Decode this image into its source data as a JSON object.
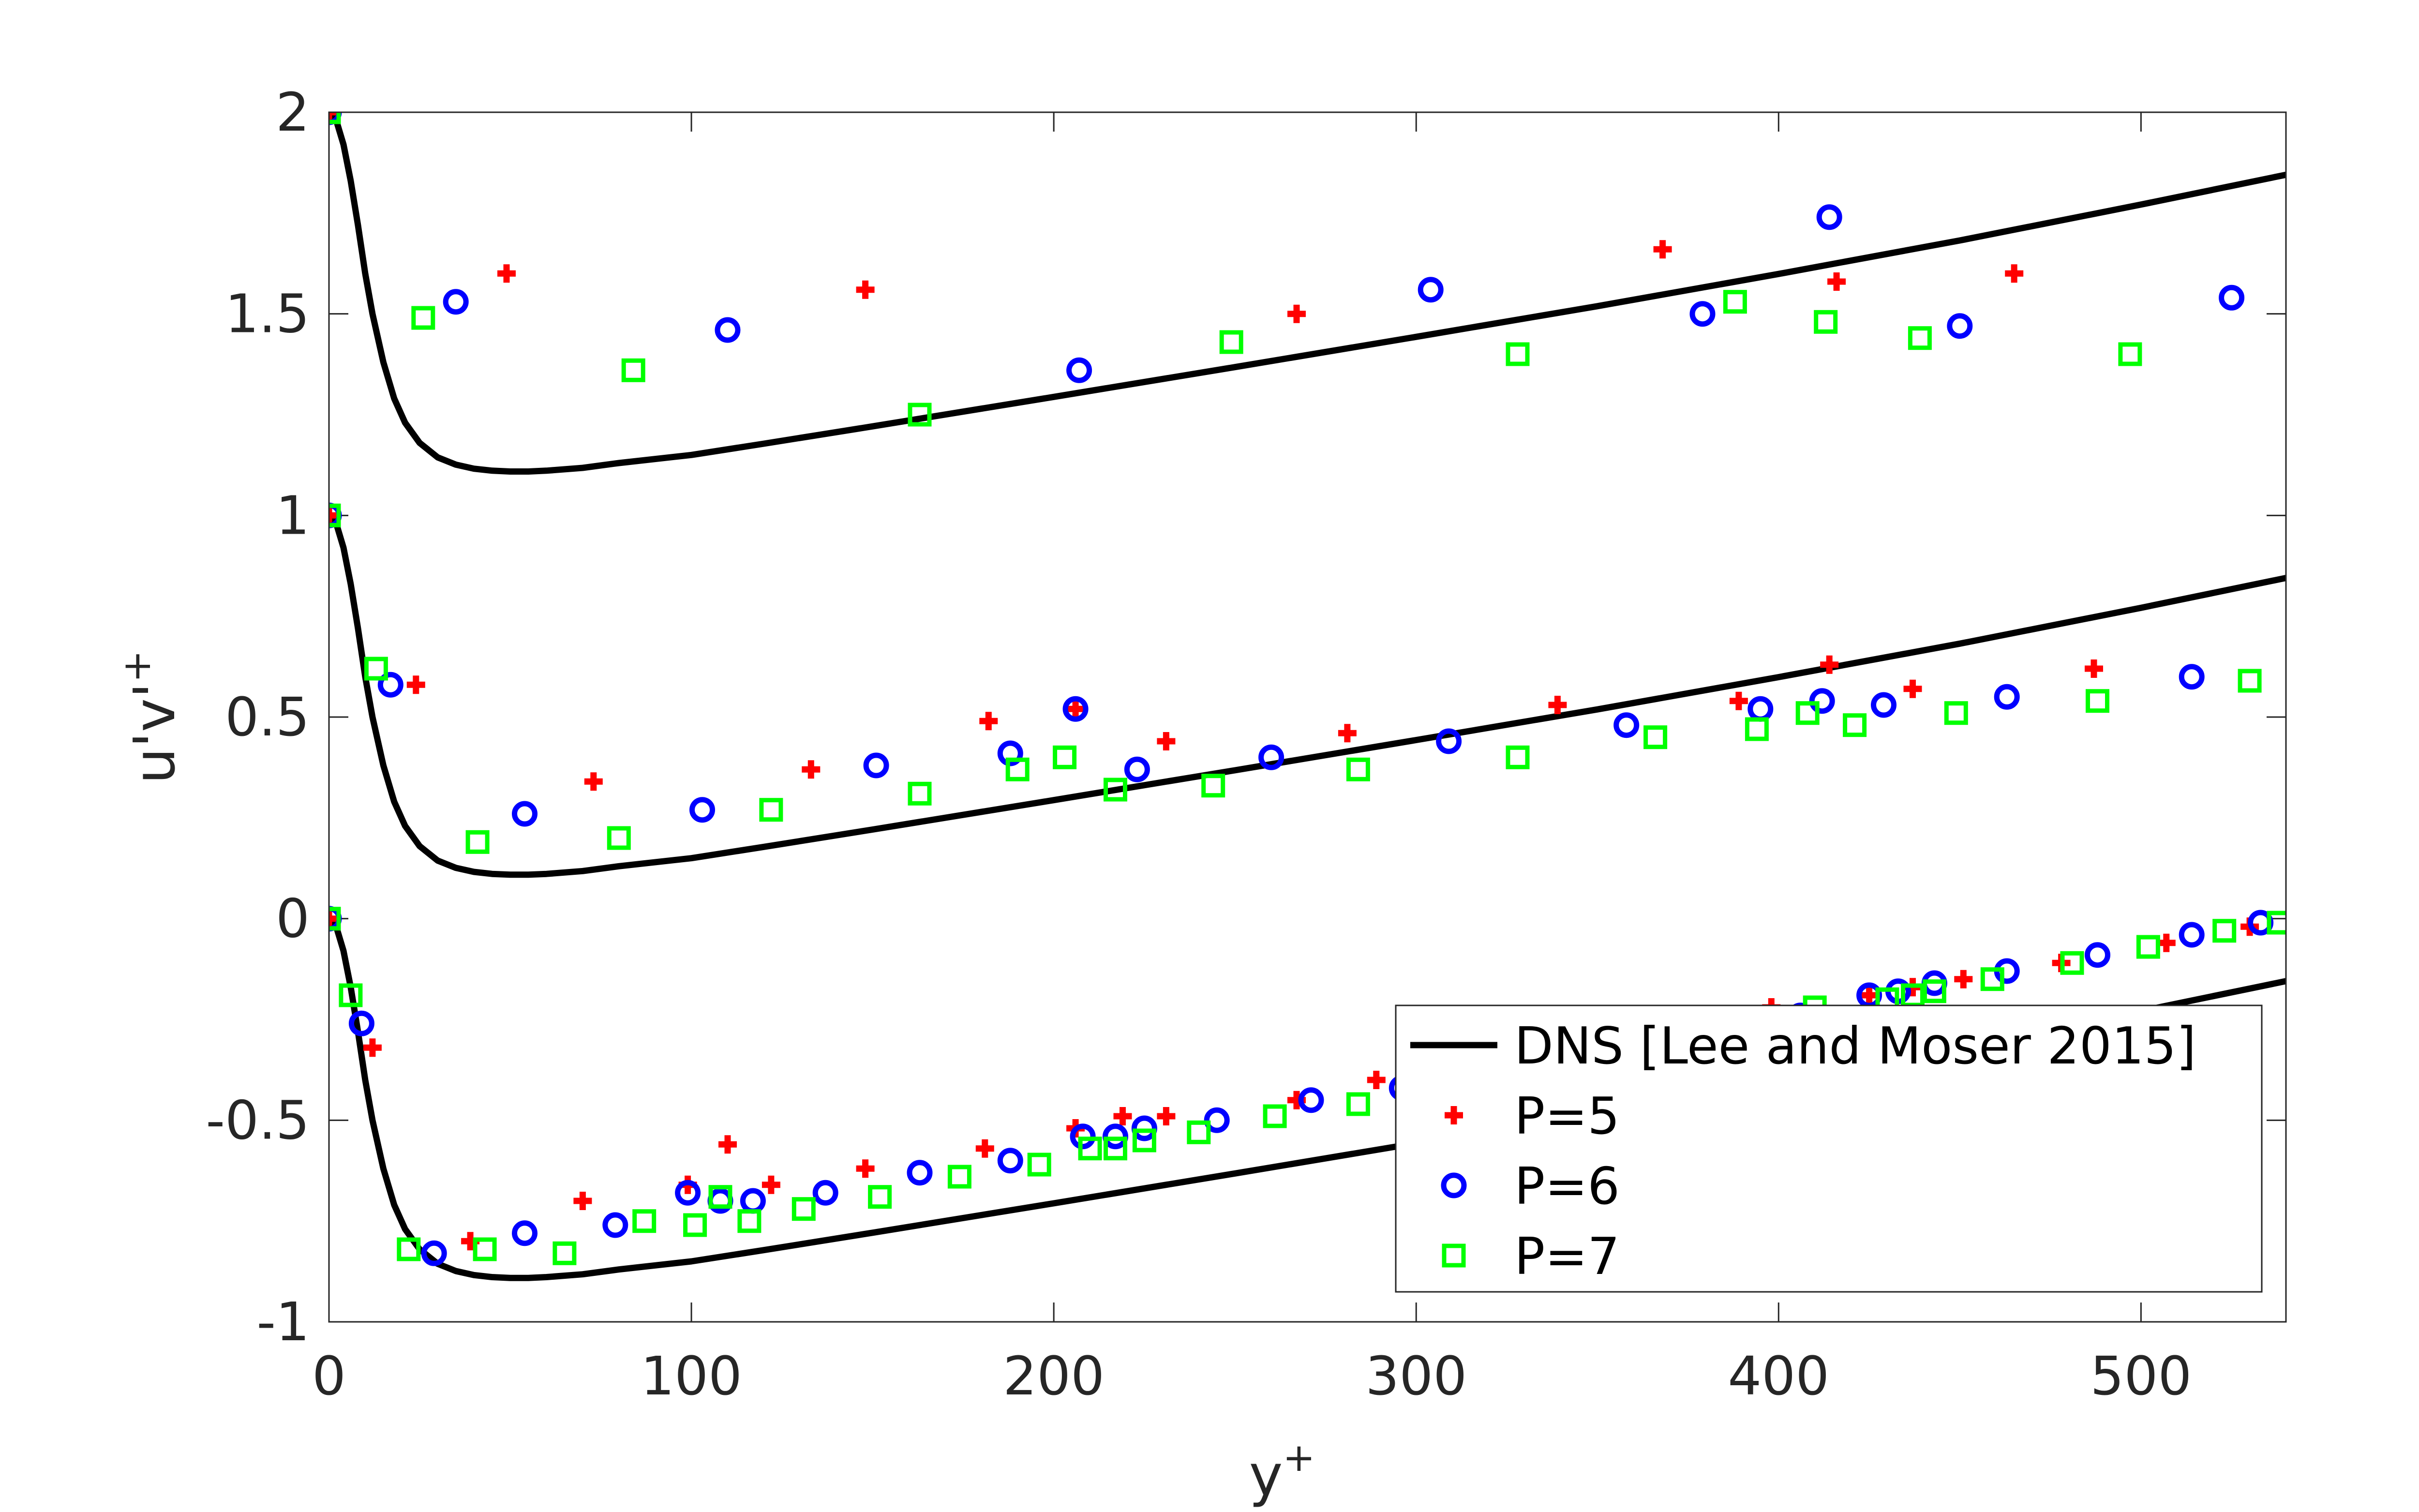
{
  "chart_data": {
    "type": "scatter",
    "title": "",
    "xlabel": "y",
    "xlabel_sup": "+",
    "ylabel": "u'v'",
    "ylabel_sup": "+",
    "xlim": [
      0,
      540
    ],
    "ylim": [
      -1,
      2
    ],
    "xticks": [
      0,
      100,
      200,
      300,
      400,
      500
    ],
    "yticks": [
      -1,
      -0.5,
      0,
      0.5,
      1,
      1.5,
      2
    ],
    "xtick_labels": [
      "0",
      "100",
      "200",
      "300",
      "400",
      "500"
    ],
    "ytick_labels": [
      "-1",
      "-0.5",
      "0",
      "0.5",
      "1",
      "1.5",
      "2"
    ],
    "grid": false,
    "legend_position": "bottom-right",
    "colors": {
      "dns": "#000000",
      "p5": "#ff0000",
      "p6": "#0000ff",
      "p7": "#00ff00",
      "axes": "#262626"
    },
    "series": [
      {
        "name": "DNS [Lee and Moser 2015]",
        "marker": "line",
        "offsets": [
          0,
          1,
          2
        ],
        "x": [
          0,
          2,
          4,
          6,
          8,
          10,
          12,
          15,
          18,
          21,
          25,
          30,
          35,
          40,
          45,
          50,
          55,
          60,
          70,
          80,
          100,
          120,
          150,
          200,
          250,
          300,
          350,
          400,
          450,
          500,
          540
        ],
        "y": [
          0,
          -0.02,
          -0.08,
          -0.17,
          -0.28,
          -0.4,
          -0.5,
          -0.62,
          -0.71,
          -0.77,
          -0.82,
          -0.856,
          -0.874,
          -0.884,
          -0.889,
          -0.891,
          -0.891,
          -0.889,
          -0.882,
          -0.87,
          -0.85,
          -0.822,
          -0.779,
          -0.706,
          -0.632,
          -0.557,
          -0.481,
          -0.401,
          -0.318,
          -0.229,
          -0.155
        ]
      },
      {
        "name": "P=5",
        "marker": "plus",
        "points": [
          [
            0,
            0
          ],
          [
            12,
            -0.32
          ],
          [
            39,
            -0.8
          ],
          [
            70,
            -0.7
          ],
          [
            99,
            -0.66
          ],
          [
            110,
            -0.56
          ],
          [
            122,
            -0.66
          ],
          [
            148,
            -0.62
          ],
          [
            181,
            -0.57
          ],
          [
            206,
            -0.52
          ],
          [
            219,
            -0.49
          ],
          [
            231,
            -0.49
          ],
          [
            267,
            -0.45
          ],
          [
            289,
            -0.4
          ],
          [
            398,
            -0.22
          ],
          [
            425,
            -0.19
          ],
          [
            437,
            -0.17
          ],
          [
            451,
            -0.15
          ],
          [
            478,
            -0.11
          ],
          [
            507,
            -0.06
          ],
          [
            530,
            -0.02
          ],
          [
            0,
            1
          ],
          [
            24,
            0.58
          ],
          [
            73,
            0.34
          ],
          [
            133,
            0.37
          ],
          [
            182,
            0.49
          ],
          [
            206,
            0.52
          ],
          [
            231,
            0.44
          ],
          [
            281,
            0.46
          ],
          [
            339,
            0.53
          ],
          [
            389,
            0.54
          ],
          [
            414,
            0.63
          ],
          [
            437,
            0.57
          ],
          [
            487,
            0.62
          ],
          [
            0,
            2
          ],
          [
            49,
            1.6
          ],
          [
            148,
            1.56
          ],
          [
            267,
            1.5
          ],
          [
            368,
            1.66
          ],
          [
            416,
            1.58
          ],
          [
            465,
            1.6
          ]
        ]
      },
      {
        "name": "P=6",
        "marker": "circle",
        "points": [
          [
            0,
            0
          ],
          [
            9,
            -0.26
          ],
          [
            29,
            -0.83
          ],
          [
            54,
            -0.78
          ],
          [
            79,
            -0.76
          ],
          [
            99,
            -0.68
          ],
          [
            108,
            -0.7
          ],
          [
            117,
            -0.7
          ],
          [
            137,
            -0.68
          ],
          [
            163,
            -0.63
          ],
          [
            188,
            -0.6
          ],
          [
            208,
            -0.54
          ],
          [
            217,
            -0.54
          ],
          [
            225,
            -0.52
          ],
          [
            245,
            -0.5
          ],
          [
            271,
            -0.45
          ],
          [
            296,
            -0.42
          ],
          [
            406,
            -0.24
          ],
          [
            425,
            -0.19
          ],
          [
            433,
            -0.18
          ],
          [
            443,
            -0.16
          ],
          [
            463,
            -0.13
          ],
          [
            488,
            -0.09
          ],
          [
            514,
            -0.04
          ],
          [
            533,
            -0.01
          ],
          [
            0,
            1
          ],
          [
            17,
            0.58
          ],
          [
            54,
            0.26
          ],
          [
            103,
            0.27
          ],
          [
            151,
            0.38
          ],
          [
            188,
            0.41
          ],
          [
            206,
            0.52
          ],
          [
            223,
            0.37
          ],
          [
            260,
            0.4
          ],
          [
            309,
            0.44
          ],
          [
            358,
            0.48
          ],
          [
            395,
            0.52
          ],
          [
            412,
            0.54
          ],
          [
            429,
            0.53
          ],
          [
            463,
            0.55
          ],
          [
            514,
            0.6
          ],
          [
            0,
            2
          ],
          [
            35,
            1.53
          ],
          [
            110,
            1.46
          ],
          [
            207,
            1.36
          ],
          [
            304,
            1.56
          ],
          [
            379,
            1.5
          ],
          [
            414,
            1.74
          ],
          [
            450,
            1.47
          ],
          [
            525,
            1.54
          ]
        ]
      },
      {
        "name": "P=7",
        "marker": "square",
        "points": [
          [
            0,
            0
          ],
          [
            6,
            -0.19
          ],
          [
            22,
            -0.82
          ],
          [
            43,
            -0.82
          ],
          [
            65,
            -0.83
          ],
          [
            87,
            -0.75
          ],
          [
            101,
            -0.76
          ],
          [
            108,
            -0.69
          ],
          [
            116,
            -0.75
          ],
          [
            131,
            -0.72
          ],
          [
            152,
            -0.69
          ],
          [
            174,
            -0.64
          ],
          [
            196,
            -0.61
          ],
          [
            210,
            -0.57
          ],
          [
            217,
            -0.57
          ],
          [
            225,
            -0.55
          ],
          [
            240,
            -0.53
          ],
          [
            261,
            -0.49
          ],
          [
            284,
            -0.46
          ],
          [
            410,
            -0.22
          ],
          [
            430,
            -0.2
          ],
          [
            437,
            -0.19
          ],
          [
            443,
            -0.18
          ],
          [
            459,
            -0.15
          ],
          [
            481,
            -0.11
          ],
          [
            502,
            -0.07
          ],
          [
            523,
            -0.03
          ],
          [
            538,
            -0.01
          ],
          [
            0,
            1
          ],
          [
            13,
            0.62
          ],
          [
            41,
            0.19
          ],
          [
            80,
            0.2
          ],
          [
            122,
            0.27
          ],
          [
            163,
            0.31
          ],
          [
            190,
            0.37
          ],
          [
            203,
            0.4
          ],
          [
            217,
            0.32
          ],
          [
            244,
            0.33
          ],
          [
            284,
            0.37
          ],
          [
            328,
            0.4
          ],
          [
            366,
            0.45
          ],
          [
            394,
            0.47
          ],
          [
            408,
            0.51
          ],
          [
            421,
            0.48
          ],
          [
            449,
            0.51
          ],
          [
            488,
            0.54
          ],
          [
            530,
            0.59
          ],
          [
            0,
            2
          ],
          [
            26,
            1.49
          ],
          [
            84,
            1.36
          ],
          [
            163,
            1.25
          ],
          [
            249,
            1.43
          ],
          [
            328,
            1.4
          ],
          [
            388,
            1.53
          ],
          [
            413,
            1.48
          ],
          [
            439,
            1.44
          ],
          [
            497,
            1.4
          ]
        ]
      }
    ]
  }
}
